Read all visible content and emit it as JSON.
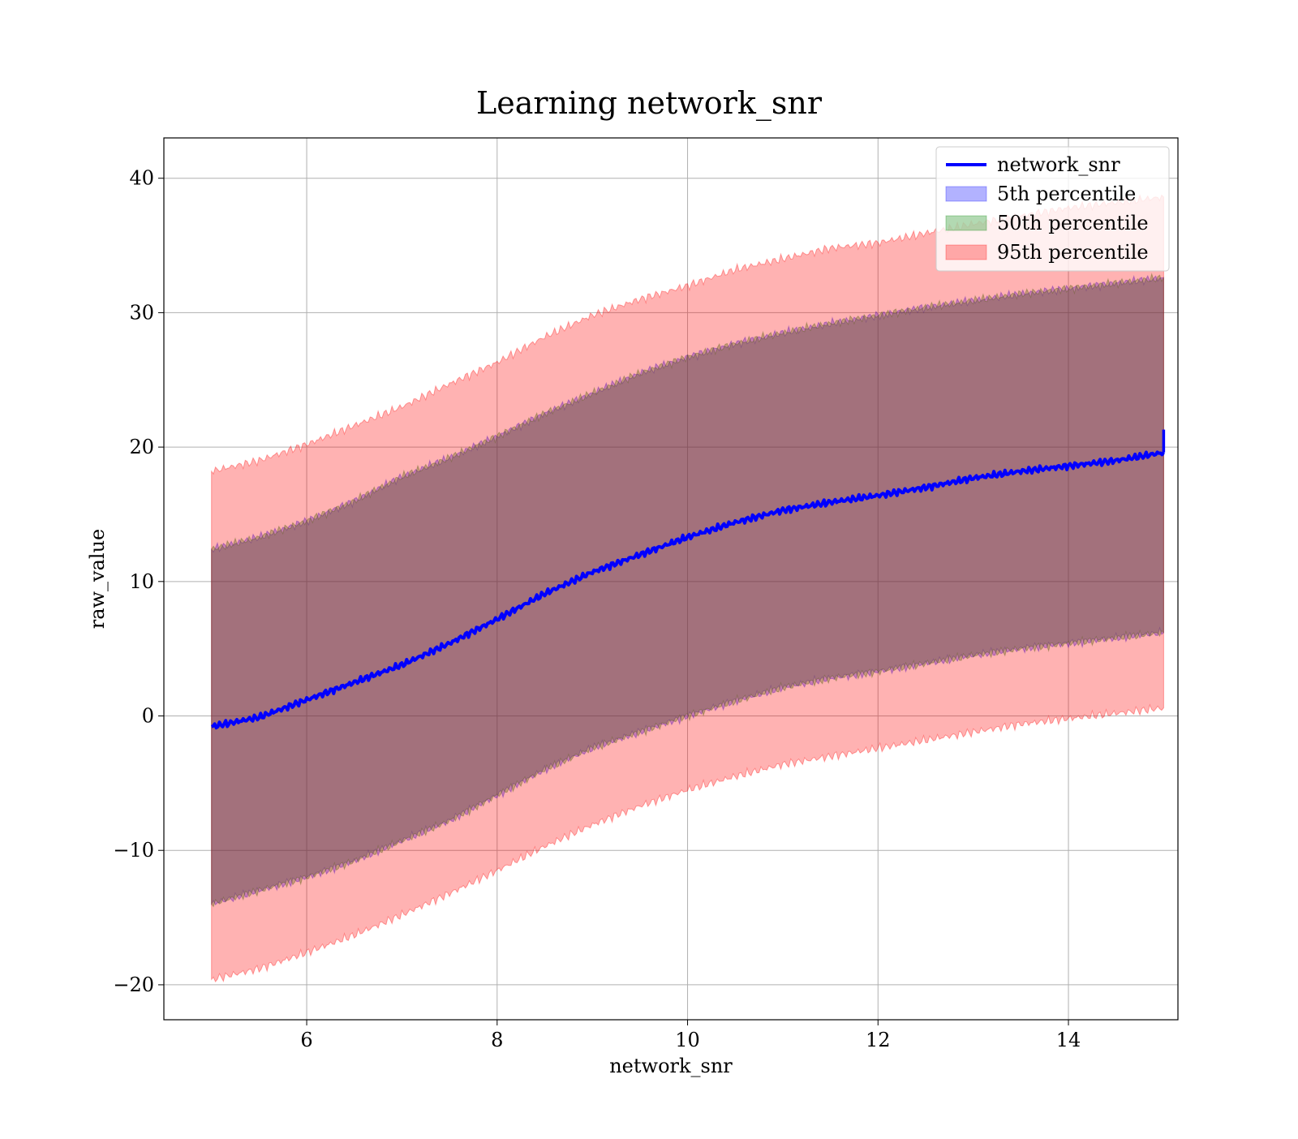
{
  "chart_data": {
    "type": "area",
    "title": "Learning network_snr",
    "xlabel": "network_snr",
    "ylabel": "raw_value",
    "xlim": [
      4.5,
      15.15
    ],
    "ylim": [
      -22.6,
      43
    ],
    "xticks": [
      6,
      8,
      10,
      12,
      14
    ],
    "yticks": [
      -20,
      -10,
      0,
      10,
      20,
      30,
      40
    ],
    "grid": true,
    "legend_position": "top-right",
    "x": [
      5.0,
      5.5,
      6.0,
      6.5,
      7.0,
      7.5,
      8.0,
      8.5,
      9.0,
      9.5,
      10.0,
      10.5,
      11.0,
      11.5,
      12.0,
      12.5,
      13.0,
      13.5,
      14.0,
      14.5,
      15.0
    ],
    "series": [
      {
        "name": "network_snr",
        "kind": "line",
        "color": "#0000ff",
        "values": [
          -0.8,
          -0.1,
          1.2,
          2.5,
          3.8,
          5.4,
          7.2,
          9.1,
          10.7,
          12.0,
          13.3,
          14.4,
          15.3,
          15.9,
          16.4,
          17.0,
          17.7,
          18.2,
          18.6,
          19.0,
          19.6
        ]
      },
      {
        "name": "5th percentile",
        "kind": "band",
        "color": "#0000ff",
        "opacity": 0.3,
        "lower": [
          -14.0,
          -13.0,
          -12.0,
          -10.8,
          -9.3,
          -7.8,
          -5.9,
          -4.0,
          -2.4,
          -1.2,
          0.0,
          1.1,
          2.1,
          2.8,
          3.3,
          3.9,
          4.5,
          5.0,
          5.4,
          5.8,
          6.2
        ],
        "upper": [
          12.4,
          13.3,
          14.5,
          16.0,
          17.8,
          19.2,
          20.8,
          22.5,
          24.0,
          25.5,
          26.7,
          27.7,
          28.5,
          29.2,
          29.8,
          30.4,
          30.9,
          31.4,
          31.8,
          32.2,
          32.6
        ]
      },
      {
        "name": "50th percentile",
        "kind": "band",
        "color": "#008000",
        "opacity": 0.3,
        "lower": [
          -14.0,
          -13.0,
          -12.0,
          -10.8,
          -9.3,
          -7.8,
          -5.9,
          -4.0,
          -2.4,
          -1.2,
          0.0,
          1.1,
          2.1,
          2.8,
          3.3,
          3.9,
          4.5,
          5.0,
          5.4,
          5.8,
          6.2
        ],
        "upper": [
          12.4,
          13.3,
          14.5,
          16.0,
          17.8,
          19.2,
          20.8,
          22.5,
          24.0,
          25.5,
          26.7,
          27.7,
          28.5,
          29.2,
          29.8,
          30.4,
          30.9,
          31.4,
          31.8,
          32.2,
          32.6
        ]
      },
      {
        "name": "95th percentile",
        "kind": "band",
        "color": "#ff0000",
        "opacity": 0.3,
        "lower": [
          -19.6,
          -18.8,
          -17.6,
          -16.3,
          -14.8,
          -13.2,
          -11.5,
          -9.7,
          -8.1,
          -6.7,
          -5.5,
          -4.5,
          -3.6,
          -3.0,
          -2.4,
          -1.8,
          -1.2,
          -0.6,
          -0.2,
          0.2,
          0.6
        ],
        "upper": [
          18.2,
          19.0,
          20.2,
          21.6,
          23.0,
          24.7,
          26.3,
          28.2,
          29.8,
          31.0,
          32.0,
          33.2,
          34.0,
          34.8,
          35.2,
          35.9,
          36.6,
          37.2,
          37.8,
          38.2,
          38.6
        ]
      }
    ]
  }
}
